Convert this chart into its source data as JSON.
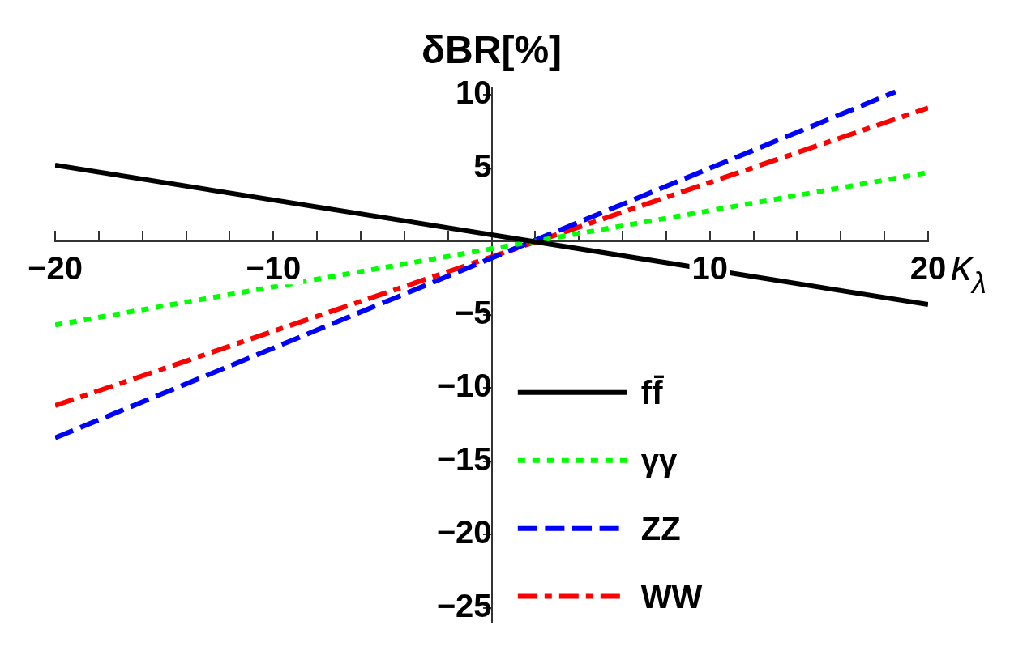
{
  "chart_data": {
    "type": "line",
    "xlabel": "κ$_{λ}$",
    "ylabel": "δBR[%]",
    "xlim": [
      -20,
      20
    ],
    "ylim": [
      -26,
      10.5
    ],
    "xticks": [
      -20,
      {
        "value": -18,
        "label": null
      },
      {
        "value": -16,
        "label": null
      },
      {
        "value": -14,
        "label": null
      },
      {
        "value": -12,
        "label": null
      },
      -10,
      {
        "value": -8,
        "label": null
      },
      {
        "value": -6,
        "label": null
      },
      {
        "value": -4,
        "label": null
      },
      {
        "value": -2,
        "label": null
      },
      {
        "value": 2,
        "label": null
      },
      {
        "value": 4,
        "label": null
      },
      {
        "value": 6,
        "label": null
      },
      {
        "value": 8,
        "label": null
      },
      10,
      {
        "value": 12,
        "label": null
      },
      {
        "value": 14,
        "label": null
      },
      {
        "value": 16,
        "label": null
      },
      {
        "value": 18,
        "label": null
      },
      20
    ],
    "yticks": [
      -25,
      -20,
      -15,
      -10,
      -5,
      5,
      10
    ],
    "grid": false,
    "legend": "bottom",
    "marker": "none",
    "series": [
      {
        "name": "ff̄",
        "color": "#000000",
        "line_style": "solid",
        "x": [
          -20,
          20
        ],
        "values": [
          5.2,
          -4.3
        ]
      },
      {
        "name": "γγ",
        "color": "#00ff00",
        "line_style": "dotted",
        "x": [
          -20,
          20
        ],
        "values": [
          -5.7,
          4.7
        ]
      },
      {
        "name": "ZZ",
        "color": "#0000ff",
        "line_style": "dashed",
        "x": [
          -20,
          18.5
        ],
        "values": [
          -13.4,
          10.2
        ]
      },
      {
        "name": "WW",
        "color": "#ff0000",
        "line_style": "dashdot",
        "x": [
          -20,
          20
        ],
        "values": [
          -11.2,
          9.1
        ]
      }
    ]
  }
}
